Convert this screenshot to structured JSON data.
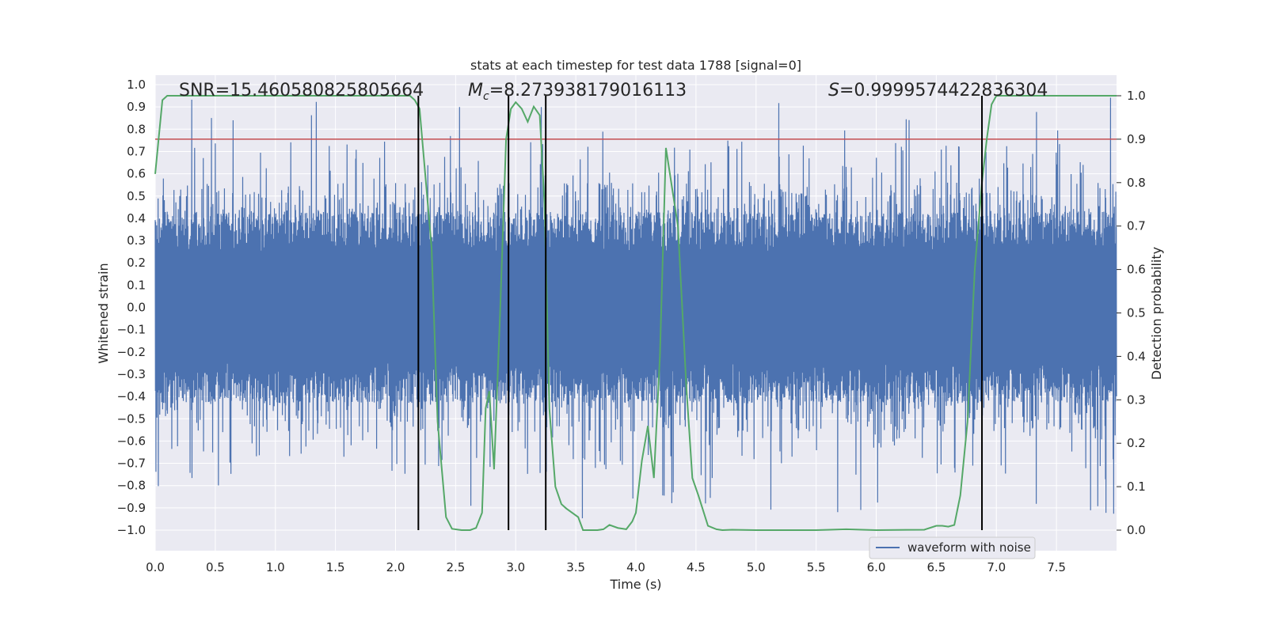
{
  "chart_data": {
    "type": "line",
    "title": "stats at each timestep for test data 1788 [signal=0]",
    "xlabel": "Time (s)",
    "ylabel": "Whitened strain",
    "ylabel_right": "Detection probability",
    "xlim": [
      0,
      8
    ],
    "ylim": [
      -1.0,
      1.0
    ],
    "ylim_right": [
      0.0,
      1.0
    ],
    "x_ticks": [
      "0.0",
      "0.5",
      "1.0",
      "1.5",
      "2.0",
      "2.5",
      "3.0",
      "3.5",
      "4.0",
      "4.5",
      "5.0",
      "5.5",
      "6.0",
      "6.5",
      "7.0",
      "7.5"
    ],
    "y_ticks": [
      "1.0",
      "0.9",
      "0.8",
      "0.7",
      "0.6",
      "0.5",
      "0.4",
      "0.3",
      "0.2",
      "0.1",
      "0.0",
      "-0.1",
      "-0.2",
      "-0.3",
      "-0.4",
      "-0.5",
      "-0.6",
      "-0.7",
      "-0.8",
      "-0.9",
      "-1.0"
    ],
    "y_ticks_right": [
      "1.0",
      "0.9",
      "0.8",
      "0.7",
      "0.6",
      "0.5",
      "0.4",
      "0.3",
      "0.2",
      "0.1",
      "0.0"
    ],
    "grid": true,
    "legend": {
      "entries": [
        "waveform with noise"
      ],
      "position": "lower-right"
    },
    "annotations": {
      "snr": "SNR=15.460580825805664",
      "mc_symbol": "M",
      "mc_sub": "c",
      "mc_value": "=8.273938179016113",
      "s_symbol": "S",
      "s_value": "=0.9999574422836304"
    },
    "colors": {
      "waveform": "#4c72b0",
      "probability": "#55a868",
      "threshold": "#c44e52",
      "markers": "#000000",
      "background": "#eaeaf2"
    },
    "threshold_right": 0.9,
    "vertical_markers_x": [
      2.19,
      2.94,
      3.25,
      6.88
    ],
    "waveform": {
      "description_range": "noise dense within about -0.4 to 0.4, spikes up to about 0.95 and down to about -1.0",
      "max": 0.95,
      "min": -1.0
    },
    "series": [
      {
        "name": "waveform with noise",
        "x_range": [
          0,
          8
        ]
      },
      {
        "x": [
          0.0,
          0.06,
          0.1,
          0.2,
          0.5,
          1.0,
          1.5,
          2.0,
          2.12,
          2.16,
          2.2,
          2.3,
          2.35,
          2.42,
          2.47,
          2.55,
          2.62,
          2.67,
          2.72,
          2.75,
          2.78,
          2.82,
          2.87,
          2.92,
          2.96,
          3.0,
          3.05,
          3.1,
          3.15,
          3.2,
          3.24,
          3.28,
          3.33,
          3.38,
          3.42,
          3.47,
          3.52,
          3.56,
          3.6,
          3.68,
          3.73,
          3.78,
          3.85,
          3.92,
          3.97,
          4.0,
          4.05,
          4.1,
          4.15,
          4.2,
          4.25,
          4.3,
          4.35,
          4.42,
          4.47,
          4.52,
          4.6,
          4.67,
          4.72,
          4.8,
          5.0,
          5.5,
          5.75,
          6.0,
          6.4,
          6.5,
          6.55,
          6.6,
          6.65,
          6.7,
          6.76,
          6.82,
          6.88,
          6.92,
          6.96,
          7.0,
          7.1,
          7.5,
          8.0
        ],
        "y": [
          0.82,
          0.99,
          1.0,
          1.0,
          1.0,
          1.0,
          1.0,
          1.0,
          1.0,
          0.99,
          0.97,
          0.65,
          0.25,
          0.03,
          0.003,
          0.0,
          0.0,
          0.005,
          0.04,
          0.28,
          0.32,
          0.14,
          0.5,
          0.9,
          0.97,
          0.985,
          0.97,
          0.94,
          0.975,
          0.955,
          0.75,
          0.28,
          0.1,
          0.06,
          0.05,
          0.04,
          0.03,
          0.0,
          0.0,
          0.0,
          0.002,
          0.012,
          0.005,
          0.002,
          0.02,
          0.04,
          0.16,
          0.24,
          0.12,
          0.4,
          0.88,
          0.79,
          0.7,
          0.33,
          0.12,
          0.08,
          0.01,
          0.002,
          0.0,
          0.001,
          0.0,
          0.0,
          0.002,
          0.0,
          0.001,
          0.01,
          0.01,
          0.008,
          0.012,
          0.08,
          0.25,
          0.6,
          0.8,
          0.9,
          0.98,
          1.0,
          1.0,
          1.0,
          1.0
        ]
      }
    ]
  }
}
